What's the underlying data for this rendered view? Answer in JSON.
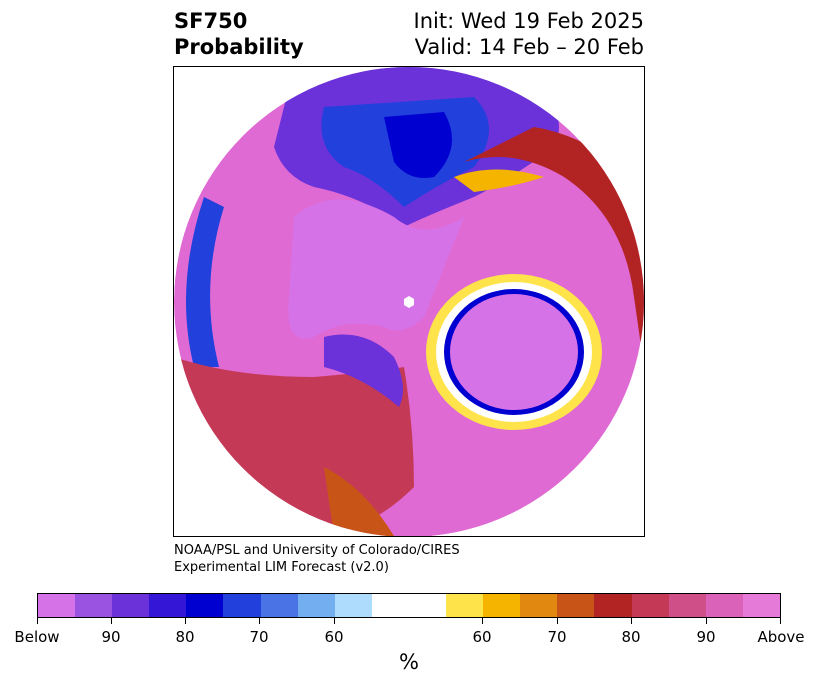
{
  "title": {
    "left_line1": "SF750",
    "left_line2": "Probability",
    "right_line1": "Init: Wed 19 Feb 2025",
    "right_line2": "Valid: 14 Feb – 20 Feb"
  },
  "credit": {
    "line1": "NOAA/PSL and University of Colorado/CIRES",
    "line2": "Experimental LIM Forecast (v2.0)"
  },
  "colorbar": {
    "unit": "%",
    "tick_labels": [
      "Below",
      "90",
      "80",
      "70",
      "60",
      "60",
      "70",
      "80",
      "90",
      "Above"
    ],
    "colors": [
      "#d672e8",
      "#9a52e0",
      "#6a32d8",
      "#3416d6",
      "#0000d0",
      "#2140dc",
      "#4a74e6",
      "#72aef0",
      "#aedcfc",
      "#ffffff",
      "#ffe34a",
      "#f4b400",
      "#e08810",
      "#c85418",
      "#b22424",
      "#c43a56",
      "#cf5088",
      "#da62b8",
      "#e67ad8"
    ],
    "wide_index": 9
  },
  "map": {
    "projection": "polar stereographic (North Hemisphere)",
    "field_colors": {
      "strong_above": "#e06ad4",
      "strong_below": "#d672e8",
      "above_red": "#b22424",
      "above_orange": "#e08810",
      "above_yellow": "#ffe34a",
      "below_blue": "#0000d0",
      "below_purple": "#6a32d8"
    }
  }
}
